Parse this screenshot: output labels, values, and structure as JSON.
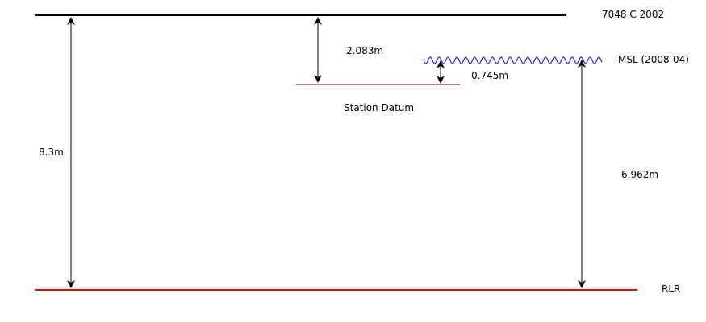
{
  "levels": {
    "benchmark": {
      "label": "7048 C 2002",
      "color": "#000000"
    },
    "msl": {
      "label": "MSL (2008-04)",
      "color": "#0000ff"
    },
    "station_datum": {
      "label": "Station Datum",
      "color": "#800000"
    },
    "rlr": {
      "label": "RLR",
      "color": "#ff0000"
    }
  },
  "measurements": {
    "benchmark_to_rlr": "8.3m",
    "benchmark_to_station_datum": "2.083m",
    "station_datum_to_msl": "0.745m",
    "msl_to_rlr": "6.962m"
  },
  "colors": {
    "arrow": "#000000"
  }
}
